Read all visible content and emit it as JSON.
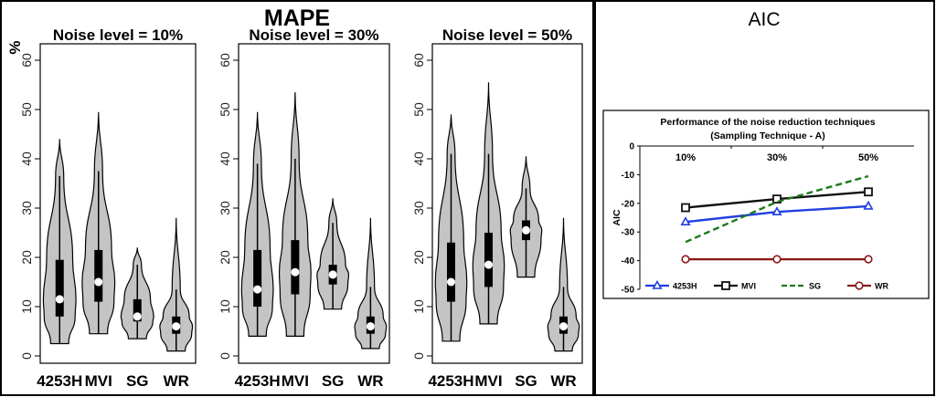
{
  "panels": {
    "left_title": "MAPE",
    "right_title": "AIC"
  },
  "chart_data": [
    {
      "type": "violin",
      "title": "Noise level = 10%",
      "ylabel": "%",
      "ylim": [
        0,
        60
      ],
      "yticks": [
        0,
        10,
        20,
        30,
        40,
        50,
        60
      ],
      "categories": [
        "4253H",
        "MVI",
        "SG",
        "WR"
      ],
      "groups": [
        {
          "name": "4253H",
          "min": 2.5,
          "q1": 8,
          "median": 11.5,
          "q3": 19.5,
          "max": 44,
          "upper_whisker": 36.5
        },
        {
          "name": "MVI",
          "min": 4.5,
          "q1": 11,
          "median": 15,
          "q3": 21.5,
          "max": 49.5,
          "upper_whisker": 37.5
        },
        {
          "name": "SG",
          "min": 3.5,
          "q1": 7,
          "median": 8,
          "q3": 11.5,
          "max": 22,
          "upper_whisker": 18.5
        },
        {
          "name": "WR",
          "min": 1,
          "q1": 4.5,
          "median": 6,
          "q3": 8,
          "max": 28,
          "upper_whisker": 13.5
        }
      ]
    },
    {
      "type": "violin",
      "title": "Noise level = 30%",
      "ylabel": "",
      "ylim": [
        0,
        60
      ],
      "yticks": [
        0,
        10,
        20,
        30,
        40,
        50,
        60
      ],
      "categories": [
        "4253H",
        "MVI",
        "SG",
        "WR"
      ],
      "groups": [
        {
          "name": "4253H",
          "min": 4,
          "q1": 10,
          "median": 13.5,
          "q3": 21.5,
          "max": 49.5,
          "upper_whisker": 39
        },
        {
          "name": "MVI",
          "min": 4,
          "q1": 12.5,
          "median": 17,
          "q3": 23.5,
          "max": 53.5,
          "upper_whisker": 40
        },
        {
          "name": "SG",
          "min": 9.5,
          "q1": 14.5,
          "median": 16.5,
          "q3": 18.5,
          "max": 32,
          "upper_whisker": 27
        },
        {
          "name": "WR",
          "min": 1.5,
          "q1": 4.5,
          "median": 6,
          "q3": 8,
          "max": 28,
          "upper_whisker": 14
        }
      ]
    },
    {
      "type": "violin",
      "title": "Noise level = 50%",
      "ylabel": "",
      "ylim": [
        0,
        60
      ],
      "yticks": [
        0,
        10,
        20,
        30,
        40,
        50,
        60
      ],
      "categories": [
        "4253H",
        "MVI",
        "SG",
        "WR"
      ],
      "groups": [
        {
          "name": "4253H",
          "min": 3,
          "q1": 11,
          "median": 15,
          "q3": 23,
          "max": 49,
          "upper_whisker": 41
        },
        {
          "name": "MVI",
          "min": 6.5,
          "q1": 14,
          "median": 18.5,
          "q3": 25,
          "max": 55.5,
          "upper_whisker": 41
        },
        {
          "name": "SG",
          "min": 16,
          "q1": 23.5,
          "median": 25.5,
          "q3": 27.5,
          "max": 40.5,
          "upper_whisker": 34
        },
        {
          "name": "WR",
          "min": 1,
          "q1": 4.5,
          "median": 6,
          "q3": 8,
          "max": 28,
          "upper_whisker": 14
        }
      ]
    },
    {
      "type": "line",
      "title": "Performance of the noise reduction techniques",
      "subtitle": "(Sampling Technique - A)",
      "ylabel": "AIC",
      "ylim": [
        -50,
        0
      ],
      "yticks": [
        0,
        -10,
        -20,
        -30,
        -40,
        -50
      ],
      "categories": [
        "10%",
        "30%",
        "50%"
      ],
      "legend_position": "bottom",
      "series": [
        {
          "name": "4253H",
          "values": [
            -26.5,
            -23,
            -21
          ],
          "color": "#1f3fe0",
          "marker": "triangle",
          "dash": "solid"
        },
        {
          "name": "MVI",
          "values": [
            -21.5,
            -18.5,
            -16
          ],
          "color": "#111111",
          "marker": "square",
          "dash": "solid"
        },
        {
          "name": "SG",
          "values": [
            -33.5,
            -19.5,
            -10.5
          ],
          "color": "#1e7a1e",
          "marker": "none",
          "dash": "dashed"
        },
        {
          "name": "WR",
          "values": [
            -39.5,
            -39.5,
            -39.5
          ],
          "color": "#8b1a1a",
          "marker": "circle",
          "dash": "solid"
        }
      ]
    }
  ]
}
